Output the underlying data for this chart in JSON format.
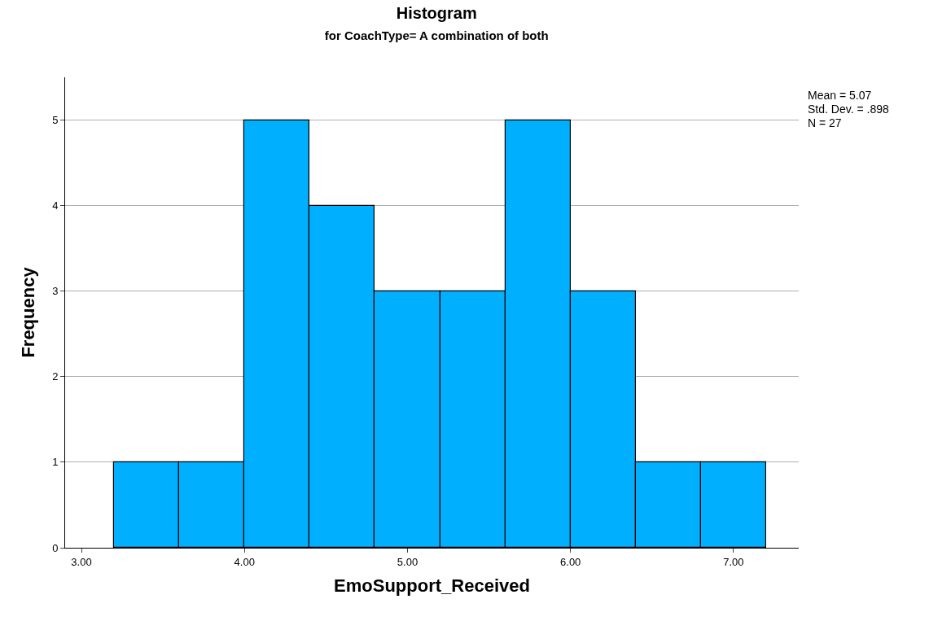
{
  "chart_data": {
    "type": "histogram",
    "title": "Histogram",
    "subtitle": "for CoachType= A combination of both",
    "xlabel": "EmoSupport_Received",
    "ylabel": "Frequency",
    "bins": [
      3.2,
      3.6,
      4.0,
      4.4,
      4.8,
      5.2,
      5.6,
      6.0,
      6.4,
      6.8,
      7.2
    ],
    "values": [
      1,
      1,
      5,
      4,
      3,
      3,
      5,
      3,
      1,
      1
    ],
    "color": "#00b0ff",
    "xlim": [
      2.9,
      7.4
    ],
    "xticks": [
      {
        "value": 3,
        "label": "3.00"
      },
      {
        "value": 4,
        "label": "4.00"
      },
      {
        "value": 5,
        "label": "5.00"
      },
      {
        "value": 6,
        "label": "6.00"
      },
      {
        "value": 7,
        "label": "7.00"
      }
    ],
    "ylim": [
      0,
      5.5
    ],
    "yticks": [
      0,
      1,
      2,
      3,
      4,
      5
    ],
    "grid": "y",
    "annotations": [
      "Mean = 5.07",
      "Std. Dev. = .898",
      "N = 27"
    ]
  }
}
